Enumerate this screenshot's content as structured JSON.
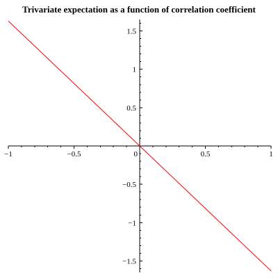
{
  "chart_data": {
    "type": "line",
    "title": "Trivariate expectation as a function of  correlation coefficient",
    "xlabel": "",
    "ylabel": "",
    "xlim": [
      -1,
      1
    ],
    "ylim": [
      -1.65,
      1.65
    ],
    "x_ticks": [
      {
        "value": -1,
        "label": "−1"
      },
      {
        "value": -0.5,
        "label": "−0.5"
      },
      {
        "value": 0,
        "label": "0"
      },
      {
        "value": 0.5,
        "label": "0.5"
      },
      {
        "value": 1,
        "label": "1"
      }
    ],
    "y_ticks": [
      {
        "value": 1.5,
        "label": "1.5"
      },
      {
        "value": 1,
        "label": "1"
      },
      {
        "value": 0.5,
        "label": "0.5"
      },
      {
        "value": -0.5,
        "label": "−0.5"
      },
      {
        "value": -1,
        "label": "−1"
      },
      {
        "value": -1.5,
        "label": "−1.5"
      }
    ],
    "grid": false,
    "series": [
      {
        "color": "#ff0000",
        "x": [
          -1,
          -0.5,
          0,
          0.5,
          1
        ],
        "y": [
          1.63,
          0.815,
          0,
          -0.815,
          -1.63
        ]
      }
    ]
  }
}
